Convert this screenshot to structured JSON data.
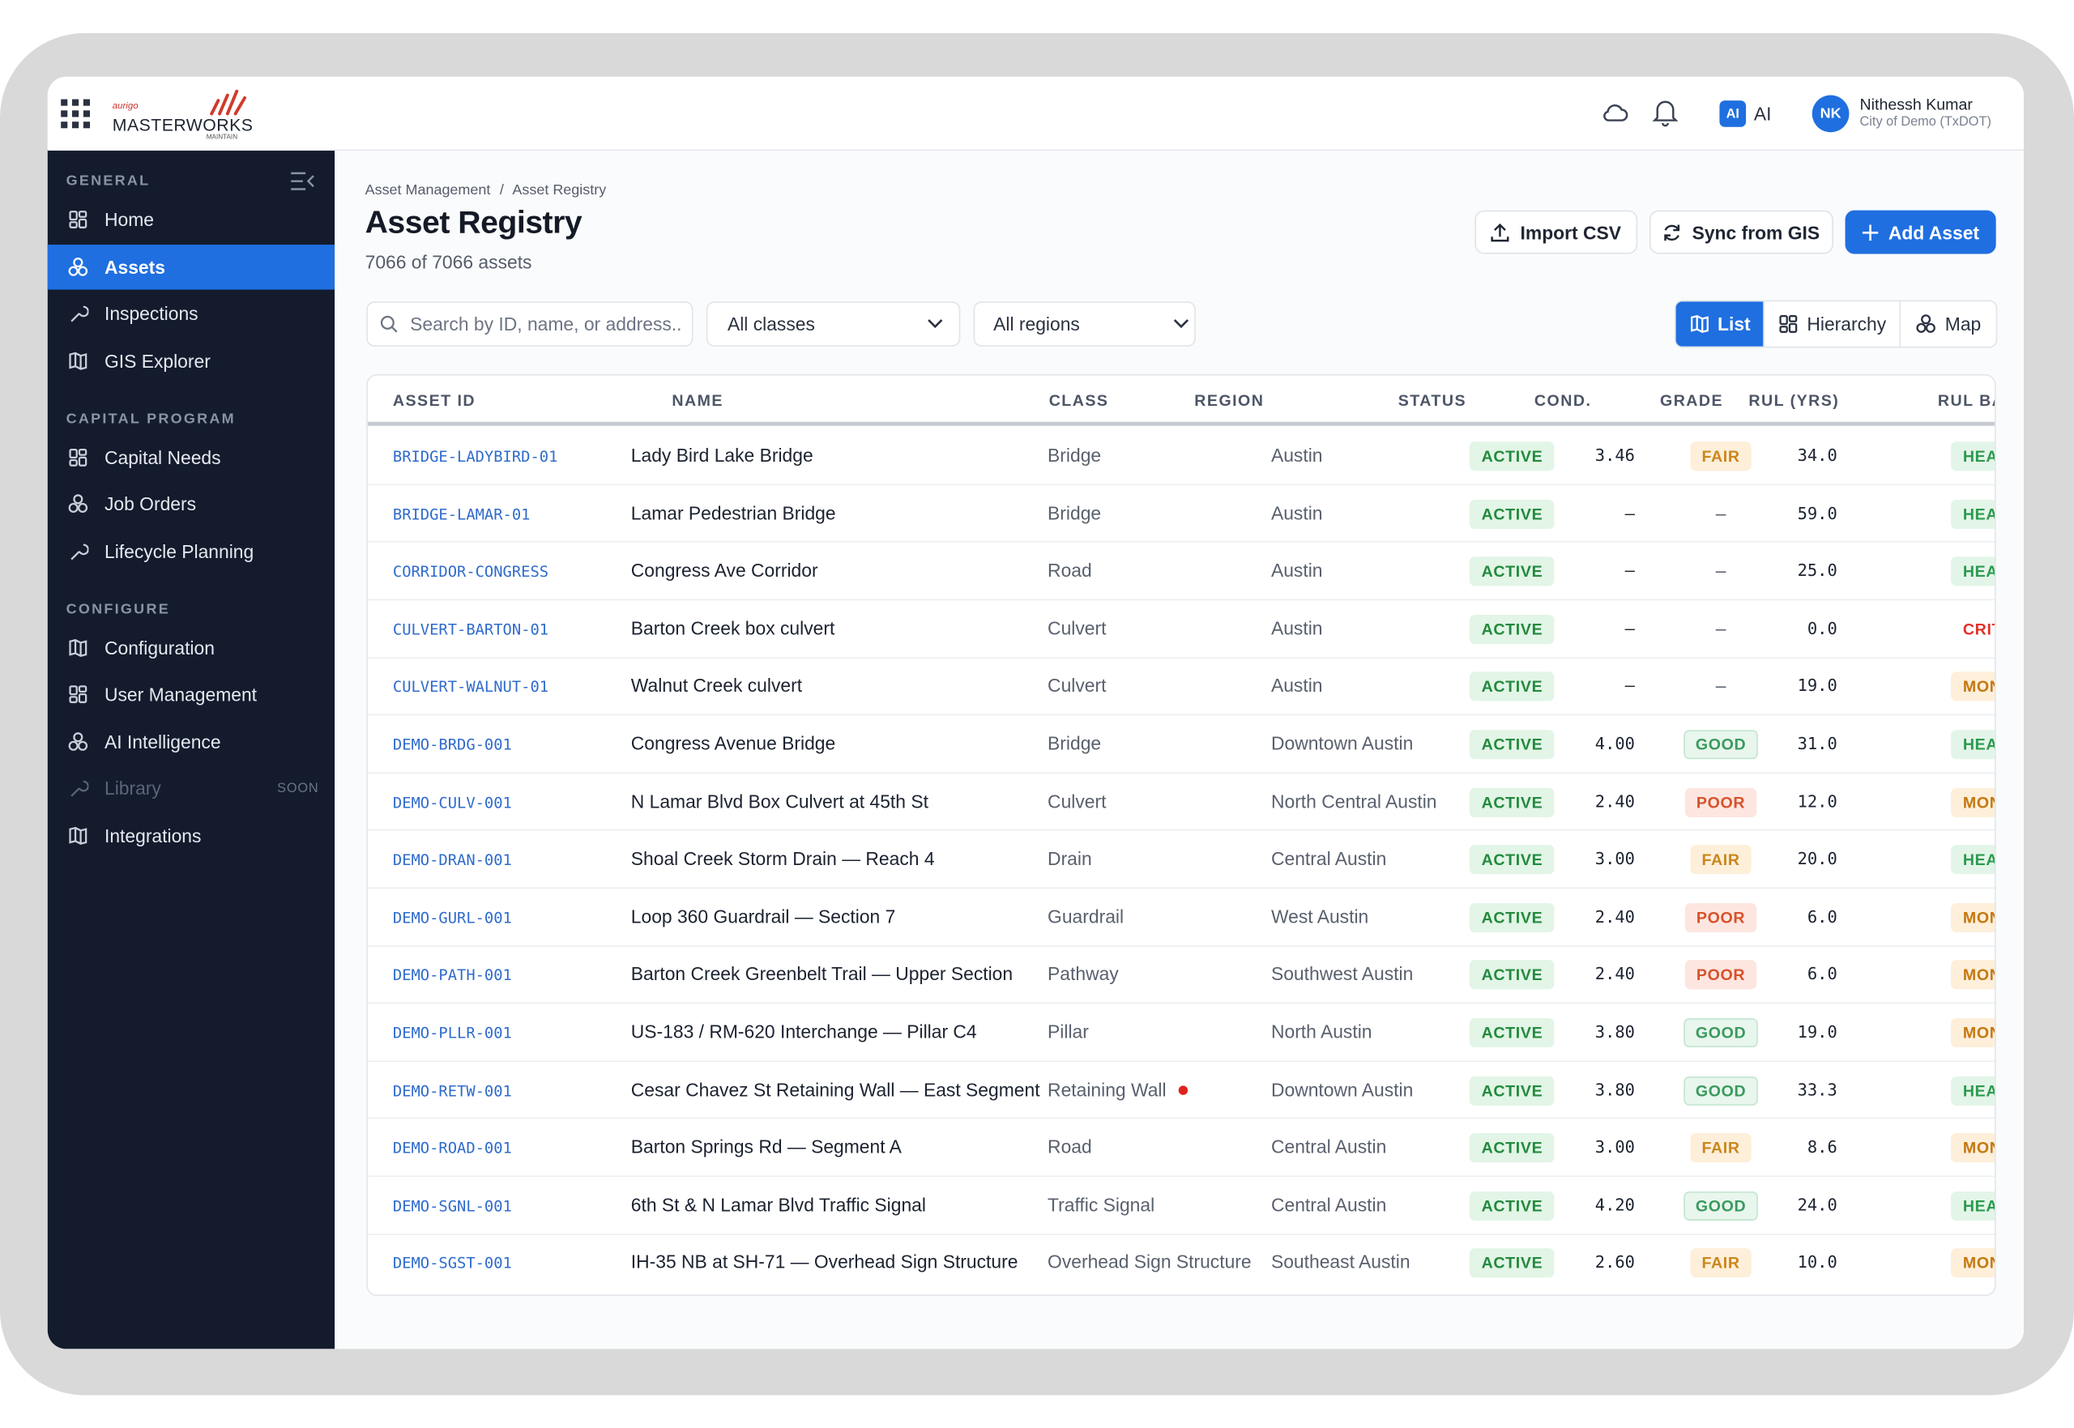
{
  "header": {
    "logo_small": "aurigo",
    "logo": "MASTERWORKS",
    "logo_sub": "MAINTAIN",
    "ai_badge": "AI",
    "ai": "AI",
    "user_initials": "NK",
    "user_name": "Nithessh Kumar",
    "user_org": "City of Demo (TxDOT)"
  },
  "sidebar": {
    "sections": [
      {
        "title": "GENERAL",
        "items": [
          {
            "label": "Home"
          },
          {
            "label": "Assets",
            "active": true
          },
          {
            "label": "Inspections"
          },
          {
            "label": "GIS Explorer"
          }
        ]
      },
      {
        "title": "CAPITAL PROGRAM",
        "items": [
          {
            "label": "Capital Needs"
          },
          {
            "label": "Job Orders"
          },
          {
            "label": "Lifecycle Planning"
          }
        ]
      },
      {
        "title": "CONFIGURE",
        "items": [
          {
            "label": "Configuration"
          },
          {
            "label": "User Management"
          },
          {
            "label": "AI Intelligence"
          },
          {
            "label": "Library",
            "badge": "SOON",
            "disabled": true
          },
          {
            "label": "Integrations"
          }
        ]
      }
    ]
  },
  "main": {
    "breadcrumb": [
      "Asset Management",
      "Asset Registry"
    ],
    "title": "Asset Registry",
    "subtitle": "7066 of 7066 assets",
    "buttons": {
      "import": "Import CSV",
      "sync": "Sync from GIS",
      "add": "Add Asset"
    },
    "search_placeholder": "Search by ID, name, or address..",
    "filters": [
      "All classes",
      "All regions"
    ],
    "views": [
      {
        "label": "List",
        "active": true
      },
      {
        "label": "Hierarchy"
      },
      {
        "label": "Map"
      }
    ]
  },
  "table": {
    "columns": [
      "ASSET ID",
      "NAME",
      "CLASS",
      "REGION",
      "STATUS",
      "COND.",
      "GRADE",
      "RUL (YRS)",
      "RUL BA"
    ],
    "rows": [
      [
        "BRIDGE-LADYBIRD-01",
        "Lady Bird Lake Bridge",
        "Bridge",
        "Austin",
        "ACTIVE",
        "3.46",
        "FAIR",
        "34.0",
        "HEAL"
      ],
      [
        "BRIDGE-LAMAR-01",
        "Lamar Pedestrian Bridge",
        "Bridge",
        "Austin",
        "ACTIVE",
        "–",
        "–",
        "59.0",
        "HEAL"
      ],
      [
        "CORRIDOR-CONGRESS",
        "Congress Ave Corridor",
        "Road",
        "Austin",
        "ACTIVE",
        "–",
        "–",
        "25.0",
        "HEAL"
      ],
      [
        "CULVERT-BARTON-01",
        "Barton Creek box culvert",
        "Culvert",
        "Austin",
        "ACTIVE",
        "–",
        "–",
        "0.0",
        "CRITI"
      ],
      [
        "CULVERT-WALNUT-01",
        "Walnut Creek culvert",
        "Culvert",
        "Austin",
        "ACTIVE",
        "–",
        "–",
        "19.0",
        "MONI"
      ],
      [
        "DEMO-BRDG-001",
        "Congress Avenue Bridge",
        "Bridge",
        "Downtown Austin",
        "ACTIVE",
        "4.00",
        "GOOD",
        "31.0",
        "HEAL"
      ],
      [
        "DEMO-CULV-001",
        "N Lamar Blvd Box Culvert at 45th St",
        "Culvert",
        "North Central Austin",
        "ACTIVE",
        "2.40",
        "POOR",
        "12.0",
        "MONI"
      ],
      [
        "DEMO-DRAN-001",
        "Shoal Creek Storm Drain — Reach 4",
        "Drain",
        "Central Austin",
        "ACTIVE",
        "3.00",
        "FAIR",
        "20.0",
        "HEAL"
      ],
      [
        "DEMO-GURL-001",
        "Loop 360 Guardrail — Section 7",
        "Guardrail",
        "West Austin",
        "ACTIVE",
        "2.40",
        "POOR",
        "6.0",
        "MONI"
      ],
      [
        "DEMO-PATH-001",
        "Barton Creek Greenbelt Trail — Upper Section",
        "Pathway",
        "Southwest Austin",
        "ACTIVE",
        "2.40",
        "POOR",
        "6.0",
        "MONI"
      ],
      [
        "DEMO-PLLR-001",
        "US-183 / RM-620 Interchange — Pillar C4",
        "Pillar",
        "North Austin",
        "ACTIVE",
        "3.80",
        "GOOD",
        "19.0",
        "MONI"
      ],
      [
        "DEMO-RETW-001",
        "Cesar Chavez St Retaining Wall — East Segment",
        "Retaining Wall",
        "Downtown Austin",
        "ACTIVE",
        "3.80",
        "GOOD",
        "33.3",
        "HEAL"
      ],
      [
        "DEMO-ROAD-001",
        "Barton Springs Rd — Segment A",
        "Road",
        "Central Austin",
        "ACTIVE",
        "3.00",
        "FAIR",
        "8.6",
        "MONI"
      ],
      [
        "DEMO-SGNL-001",
        "6th St & N Lamar Blvd Traffic Signal",
        "Traffic Signal",
        "Central Austin",
        "ACTIVE",
        "4.20",
        "GOOD",
        "24.0",
        "HEAL"
      ],
      [
        "DEMO-SGST-001",
        "IH-35 NB at SH-71 — Overhead Sign Structure",
        "Overhead Sign Structure",
        "Southeast Austin",
        "ACTIVE",
        "2.60",
        "FAIR",
        "10.0",
        "MONI"
      ]
    ],
    "flagged_rows": [
      11
    ],
    "badge_styles": {
      "ACTIVE": [
        "#e2f5e6",
        "#238a3e",
        "#e2f5e6"
      ],
      "FAIR": [
        "#fdefda",
        "#cc861b",
        "#fdefda"
      ],
      "GOOD": [
        "#e8f6ee",
        "#3a9a5c",
        "#c4e6d0"
      ],
      "POOR": [
        "#fde6df",
        "#d6522c",
        "#fde6df"
      ],
      "HEAL": [
        "#e3f5e8",
        "#2c9a4f",
        "#e3f5e8"
      ],
      "MONI": [
        "#fdefda",
        "#c57810",
        "#fdefda"
      ],
      "CRITI": [
        "#ffffff",
        "#e0322a",
        "#ffffff"
      ]
    }
  }
}
